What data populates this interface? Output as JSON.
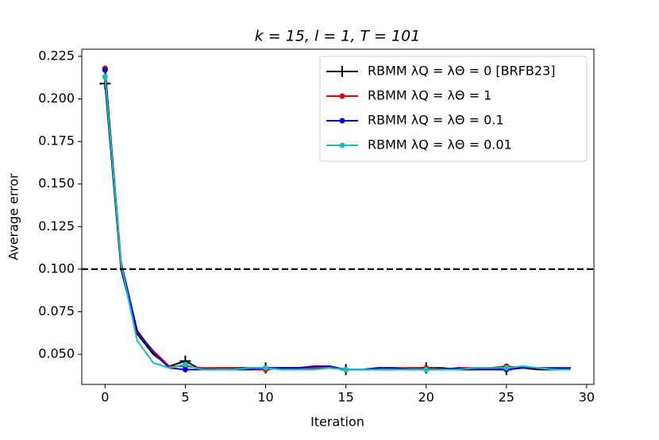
{
  "chart_data": {
    "type": "line",
    "title": "k =  15, l =  1, T = 101",
    "x_label": "Iteration",
    "y_label": "Average error",
    "x": [
      0,
      1,
      2,
      3,
      4,
      5,
      6,
      7,
      8,
      9,
      10,
      11,
      12,
      13,
      14,
      15,
      16,
      17,
      18,
      19,
      20,
      21,
      22,
      23,
      24,
      25,
      26,
      27,
      28,
      29
    ],
    "series": [
      {
        "name": "RBMM λQ = λΘ = 0 [BRFB23]",
        "color": "#000000",
        "marker": "+",
        "values": [
          0.209,
          0.1,
          0.062,
          0.05,
          0.043,
          0.046,
          0.041,
          0.042,
          0.042,
          0.042,
          0.042,
          0.042,
          0.042,
          0.042,
          0.042,
          0.041,
          0.041,
          0.041,
          0.041,
          0.042,
          0.042,
          0.042,
          0.041,
          0.041,
          0.042,
          0.041,
          0.042,
          0.041,
          0.041,
          0.042
        ]
      },
      {
        "name": "RBMM λQ = λΘ = 1",
        "color": "#e00000",
        "marker": "o",
        "values": [
          0.218,
          0.102,
          0.063,
          0.052,
          0.043,
          0.043,
          0.042,
          0.042,
          0.042,
          0.041,
          0.041,
          0.042,
          0.042,
          0.042,
          0.042,
          0.041,
          0.041,
          0.042,
          0.042,
          0.042,
          0.042,
          0.041,
          0.042,
          0.042,
          0.042,
          0.043,
          0.042,
          0.042,
          0.041,
          0.042
        ]
      },
      {
        "name": "RBMM λQ = λΘ = 0.1",
        "color": "#0000e0",
        "marker": "o",
        "values": [
          0.217,
          0.104,
          0.064,
          0.051,
          0.042,
          0.041,
          0.041,
          0.041,
          0.041,
          0.041,
          0.042,
          0.042,
          0.042,
          0.043,
          0.043,
          0.041,
          0.041,
          0.042,
          0.042,
          0.041,
          0.041,
          0.041,
          0.042,
          0.041,
          0.041,
          0.041,
          0.042,
          0.042,
          0.042,
          0.042
        ]
      },
      {
        "name": "RBMM λQ = λΘ = 0.01",
        "color": "#10c0c0",
        "marker": "o",
        "values": [
          0.213,
          0.103,
          0.058,
          0.045,
          0.042,
          0.044,
          0.041,
          0.041,
          0.041,
          0.042,
          0.042,
          0.041,
          0.041,
          0.041,
          0.042,
          0.041,
          0.041,
          0.041,
          0.041,
          0.041,
          0.041,
          0.041,
          0.041,
          0.042,
          0.042,
          0.042,
          0.043,
          0.042,
          0.041,
          0.041
        ]
      }
    ],
    "markevery": 5,
    "hline": 0.1,
    "xlim": [
      -1.45,
      30.45
    ],
    "ylim": [
      0.0323,
      0.2292
    ],
    "xticks": [
      0,
      5,
      10,
      15,
      20,
      25,
      30
    ],
    "yticks": [
      {
        "value": 0.05,
        "label": "0.050"
      },
      {
        "value": 0.075,
        "label": "0.075"
      },
      {
        "value": 0.1,
        "label": "0.100"
      },
      {
        "value": 0.125,
        "label": "0.125"
      },
      {
        "value": 0.15,
        "label": "0.150"
      },
      {
        "value": 0.175,
        "label": "0.175"
      },
      {
        "value": 0.2,
        "label": "0.200"
      },
      {
        "value": 0.225,
        "label": "0.225"
      }
    ],
    "legend": "upper right"
  }
}
